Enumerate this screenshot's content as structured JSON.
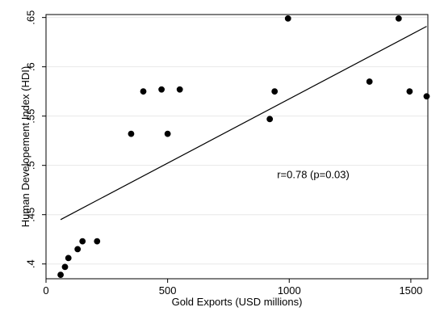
{
  "chart_data": {
    "type": "scatter",
    "title": "",
    "xlabel": "Gold Exports (USD millions)",
    "ylabel": "Human Developement Index (HDI)",
    "xlim": [
      0,
      1570
    ],
    "ylim": [
      0.385,
      0.653
    ],
    "xticks": [
      0,
      500,
      1000,
      1500
    ],
    "xtick_labels": [
      "0",
      "500",
      "1000",
      "1500"
    ],
    "yticks": [
      0.4,
      0.45,
      0.5,
      0.55,
      0.6,
      0.65
    ],
    "ytick_labels": [
      ".4",
      ".45",
      ".5",
      ".55",
      ".6",
      ".65"
    ],
    "grid": "horizontal",
    "legend": "none",
    "colors": {
      "points": "#000000",
      "line": "#000000",
      "grid": "#e8e8e8",
      "axis": "#000000"
    },
    "series": [
      {
        "type": "scatter",
        "points": [
          {
            "x": 60,
            "y": 0.389
          },
          {
            "x": 78,
            "y": 0.397
          },
          {
            "x": 92,
            "y": 0.406
          },
          {
            "x": 130,
            "y": 0.415
          },
          {
            "x": 150,
            "y": 0.423
          },
          {
            "x": 210,
            "y": 0.423
          },
          {
            "x": 350,
            "y": 0.532
          },
          {
            "x": 400,
            "y": 0.575
          },
          {
            "x": 475,
            "y": 0.577
          },
          {
            "x": 500,
            "y": 0.532
          },
          {
            "x": 550,
            "y": 0.577
          },
          {
            "x": 920,
            "y": 0.547
          },
          {
            "x": 940,
            "y": 0.575
          },
          {
            "x": 995,
            "y": 0.649
          },
          {
            "x": 1330,
            "y": 0.585
          },
          {
            "x": 1450,
            "y": 0.649
          },
          {
            "x": 1495,
            "y": 0.575
          },
          {
            "x": 1565,
            "y": 0.57
          }
        ]
      },
      {
        "type": "line",
        "points": [
          {
            "x": 60,
            "y": 0.445
          },
          {
            "x": 1565,
            "y": 0.641
          }
        ]
      }
    ],
    "annotation": {
      "text": "r=0.78 (p=0.03)",
      "x": 950,
      "y": 0.487
    }
  }
}
